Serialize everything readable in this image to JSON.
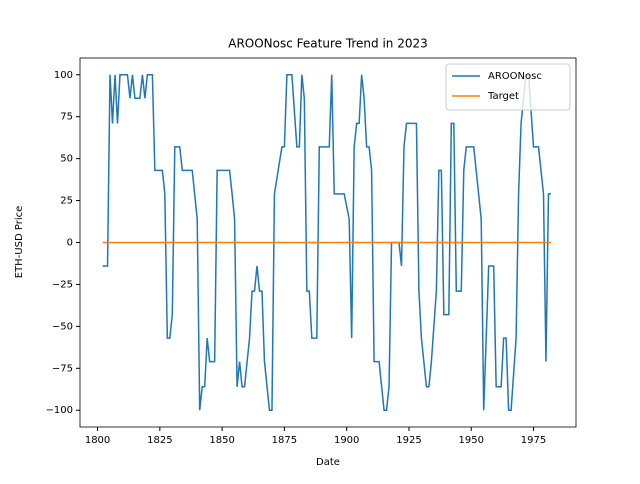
{
  "chart_data": {
    "type": "line",
    "title": "AROONosc Feature Trend in 2023",
    "xlabel": "Date",
    "ylabel": "ETH-USD Price",
    "xlim": [
      1792.95,
      1992.05
    ],
    "ylim": [
      -110,
      110
    ],
    "xticks": [
      1800,
      1825,
      1850,
      1875,
      1900,
      1925,
      1950,
      1975
    ],
    "yticks": [
      {
        "value": -100,
        "label": "−100"
      },
      {
        "value": -75,
        "label": "−75"
      },
      {
        "value": -50,
        "label": "−50"
      },
      {
        "value": -25,
        "label": "−25"
      },
      0,
      25,
      50,
      75,
      100
    ],
    "legend": "upper right",
    "series": [
      {
        "name": "AROONosc",
        "color": "#1f77b4",
        "x": [
          1802,
          1804,
          1805,
          1806,
          1807,
          1808,
          1809,
          1812,
          1813,
          1814,
          1815,
          1817,
          1818,
          1819,
          1820,
          1822,
          1823,
          1826,
          1827,
          1828,
          1829,
          1830,
          1831,
          1833,
          1834,
          1838,
          1840,
          1841,
          1842,
          1843,
          1844,
          1845,
          1847,
          1848,
          1853,
          1854,
          1855,
          1856,
          1857,
          1858,
          1859,
          1861,
          1862,
          1863,
          1864,
          1865,
          1866,
          1867,
          1869,
          1870,
          1871,
          1874,
          1875,
          1876,
          1878,
          1880,
          1881,
          1882,
          1883,
          1884,
          1885,
          1886,
          1888,
          1889,
          1893,
          1894,
          1895,
          1899,
          1901,
          1902,
          1903,
          1904,
          1905,
          1906,
          1907,
          1908,
          1909,
          1910,
          1911,
          1913,
          1915,
          1916,
          1917,
          1918,
          1921,
          1922,
          1923,
          1924,
          1926,
          1928,
          1929,
          1930,
          1932,
          1933,
          1934,
          1936,
          1937,
          1938,
          1939,
          1941,
          1942,
          1943,
          1944,
          1946,
          1947,
          1948,
          1951,
          1954,
          1955,
          1957,
          1959,
          1960,
          1962,
          1963,
          1964,
          1965,
          1966,
          1968,
          1969,
          1970,
          1971,
          1972,
          1973,
          1975,
          1977,
          1979,
          1980,
          1981,
          1982
        ],
        "values": [
          -14,
          -14,
          100,
          71,
          100,
          71,
          100,
          100,
          86,
          100,
          86,
          86,
          100,
          86,
          100,
          100,
          43,
          43,
          29,
          -57,
          -57,
          -43,
          57,
          57,
          43,
          43,
          14,
          -100,
          -86,
          -86,
          -57,
          -71,
          -71,
          43,
          43,
          29,
          14,
          -86,
          -71,
          -86,
          -86,
          -57,
          -29,
          -29,
          -14,
          -29,
          -29,
          -71,
          -100,
          -100,
          29,
          57,
          57,
          100,
          100,
          57,
          57,
          100,
          86,
          -29,
          -29,
          -57,
          -57,
          57,
          57,
          100,
          29,
          29,
          14,
          -57,
          57,
          71,
          71,
          100,
          86,
          57,
          57,
          43,
          -71,
          -71,
          -100,
          -100,
          -86,
          0,
          0,
          -14,
          57,
          71,
          71,
          71,
          -29,
          -57,
          -86,
          -86,
          -71,
          -29,
          43,
          43,
          -43,
          -43,
          71,
          71,
          -29,
          -29,
          43,
          57,
          57,
          14,
          -100,
          -14,
          -14,
          -86,
          -86,
          -57,
          -57,
          -100,
          -100,
          -57,
          29,
          71,
          86,
          100,
          100,
          57,
          57,
          29,
          -71,
          29,
          29
        ]
      },
      {
        "name": "Target",
        "color": "#ff7f0e",
        "x": [
          1802,
          1982
        ],
        "values": [
          0,
          0
        ]
      }
    ]
  }
}
